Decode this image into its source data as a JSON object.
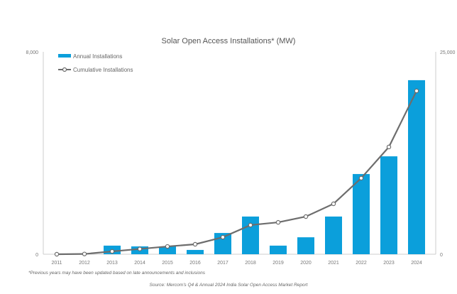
{
  "chart_data": {
    "type": "bar+line",
    "title": "Solar Open Access Installations* (MW)",
    "categories": [
      "2011",
      "2012",
      "2013",
      "2014",
      "2015",
      "2016",
      "2017",
      "2018",
      "2019",
      "2020",
      "2021",
      "2022",
      "2023",
      "2024"
    ],
    "series": [
      {
        "name": "Annual Installations",
        "type": "bar",
        "axis": "left",
        "color": "#0b9fdb",
        "values": [
          0,
          0,
          340,
          310,
          310,
          170,
          840,
          1490,
          340,
          670,
          1490,
          3170,
          3870,
          6880
        ]
      },
      {
        "name": "Cumulative Installations",
        "type": "line",
        "axis": "right",
        "color": "#6d6d6d",
        "values": [
          0,
          30,
          350,
          650,
          960,
          1230,
          2100,
          3600,
          3940,
          4650,
          6230,
          9400,
          13250,
          20180
        ]
      }
    ],
    "left_axis": {
      "ylim": [
        0,
        8000
      ],
      "tick_labels": [
        "0",
        "8,000"
      ]
    },
    "right_axis": {
      "ylim": [
        0,
        25000
      ],
      "tick_labels": [
        "0",
        "25,000"
      ]
    },
    "grid": false,
    "legend_placement": "top-left",
    "footnote": "*Previous years may have been updated based on late announcements and inclusions",
    "source": "Source: Mercom's Q4 & Annual 2024 India Solar Open Access Market Report"
  }
}
